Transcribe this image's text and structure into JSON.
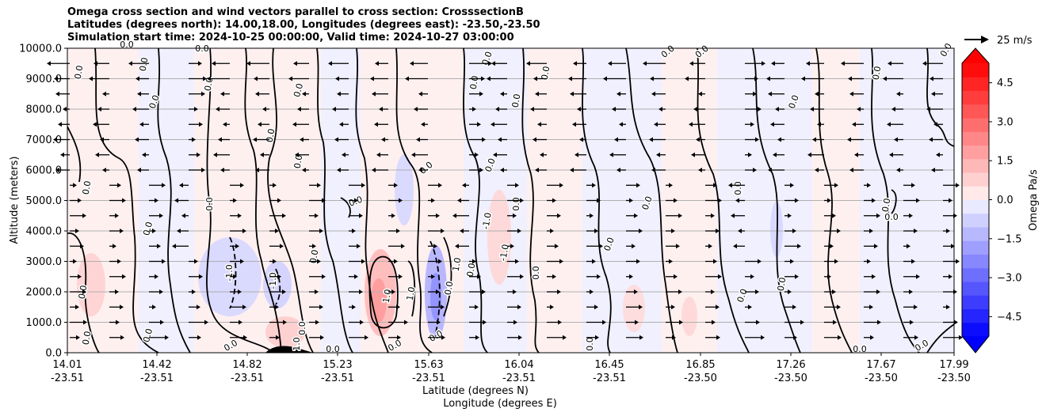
{
  "chart_data": {
    "type": "contour",
    "title_lines": [
      "Omega cross section and wind vectors parallel to cross section: CrosssectionB",
      "Latitudes (degrees north): 14.00,18.00, Longitudes (degrees east): -23.50,-23.50",
      "Simulation start time: 2024-10-25 00:00:00, Valid time: 2024-10-27 03:00:00"
    ],
    "xlabel_lat": "Latitude (degrees N)",
    "xlabel_lon": "Longitude (degrees E)",
    "ylabel": "Altitude (meters)",
    "ylim": [
      0,
      10000
    ],
    "yticks": [
      "0.0",
      "1000.0",
      "2000.0",
      "3000.0",
      "4000.0",
      "5000.0",
      "6000.0",
      "7000.0",
      "8000.0",
      "9000.0",
      "10000.0"
    ],
    "xticks": [
      {
        "lat": "14.01",
        "lon": "-23.51"
      },
      {
        "lat": "14.42",
        "lon": "-23.51"
      },
      {
        "lat": "14.82",
        "lon": "-23.51"
      },
      {
        "lat": "15.23",
        "lon": "-23.51"
      },
      {
        "lat": "15.63",
        "lon": "-23.51"
      },
      {
        "lat": "16.04",
        "lon": "-23.51"
      },
      {
        "lat": "16.45",
        "lon": "-23.51"
      },
      {
        "lat": "16.85",
        "lon": "-23.50"
      },
      {
        "lat": "17.26",
        "lon": "-23.50"
      },
      {
        "lat": "17.67",
        "lon": "-23.50"
      },
      {
        "lat": "17.99",
        "lon": "-23.50"
      }
    ],
    "colorbar": {
      "label": "Omega Pa/s",
      "range": [
        -5.25,
        5.25
      ],
      "ticks": [
        "4.5",
        "3.0",
        "1.5",
        "0.0",
        "−1.5",
        "−3.0",
        "−4.5"
      ],
      "extend": "both"
    },
    "quiver_key_label": "25 m/s",
    "contour_labels": [
      "0.0",
      "1.0",
      "-1.0"
    ],
    "colors": {
      "positive": "#ff0000",
      "negative": "#0000ff",
      "contour": "#000000",
      "grid": "#b0b0b0"
    }
  }
}
